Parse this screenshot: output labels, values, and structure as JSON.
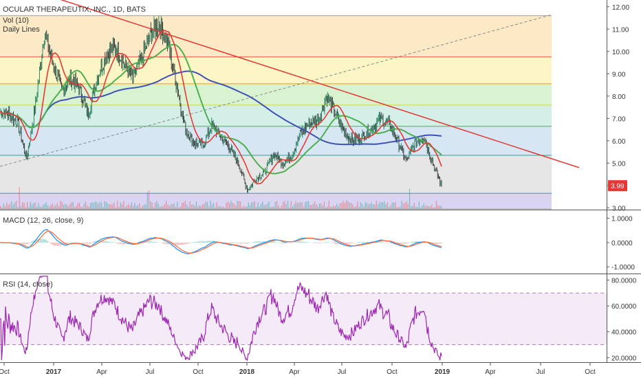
{
  "chart_data": {
    "type": "candlestick",
    "panes": {
      "price": {
        "title": "OCULAR THERAPEUTIX, INC., 1D, BATS",
        "indicator_labels": [
          "Vol (10)",
          "Daily Lines"
        ],
        "y_ticks": [
          "12.00",
          "11.00",
          "10.00",
          "9.00",
          "8.00",
          "7.00",
          "6.00",
          "5.00",
          "4.00",
          "3.00"
        ],
        "ylim": [
          2.95,
          12.3
        ],
        "last_price": "3.99",
        "last_price_color": "#e53935",
        "fib_levels": [
          {
            "value": 11.6,
            "color": "#f4cccc"
          },
          {
            "value": 9.75,
            "color": "#fce9c6"
          },
          {
            "value": 8.55,
            "color": "#fcf6c6"
          },
          {
            "value": 7.6,
            "color": "#d9f2d0"
          },
          {
            "value": 6.65,
            "color": "#d4efe8"
          },
          {
            "value": 5.35,
            "color": "#d6e6f3"
          },
          {
            "value": 3.65,
            "color": "#e6e6e6"
          },
          {
            "value": 2.95,
            "color": "#d9d4f2"
          }
        ],
        "fib_line_colors": [
          "#9e9e9e",
          "#f44336",
          "#ff9800",
          "#cddc39",
          "#4caf50",
          "#26a69a",
          "#2196f3",
          "#9e9e9e",
          "#3f51b5"
        ],
        "trendline": {
          "points": [
            [
              0,
              12.6
            ],
            [
              1260,
              4.8
            ]
          ],
          "color": "#e53935"
        },
        "diagonal": {
          "points": [
            [
              0,
              4.85
            ],
            [
              1195,
              11.65
            ]
          ],
          "color": "#888888"
        },
        "closes_sample": [
          7.3,
          7.2,
          6.8,
          5.2,
          7.5,
          10.8,
          9.5,
          8.2,
          8.8,
          8.3,
          7.2,
          8.8,
          9.8,
          10.2,
          9.5,
          8.8,
          9.6,
          10.7,
          11.3,
          10.4,
          8.5,
          6.5,
          5.9,
          5.8,
          6.7,
          6.2,
          5.7,
          5.0,
          3.8,
          4.3,
          4.6,
          5.4,
          5.0,
          5.3,
          6.3,
          6.8,
          6.9,
          8.0,
          7.2,
          6.4,
          6.0,
          6.2,
          6.5,
          7.0,
          6.8,
          6.0,
          5.1,
          5.9,
          6.2,
          5.0,
          3.99
        ],
        "ma_colors": {
          "blue": "#3f51b5",
          "green": "#4caf50",
          "red": "#e53935"
        }
      },
      "macd": {
        "title": "MACD (12, 26, close, 9)",
        "y_ticks": [
          "1.0000",
          "0.0000",
          "-1.0000"
        ],
        "ylim": [
          -1.25,
          1.3
        ]
      },
      "rsi": {
        "title": "RSI (14, close)",
        "y_ticks": [
          "80.0000",
          "60.0000",
          "40.0000",
          "20.0000"
        ],
        "ylim": [
          17,
          84
        ],
        "bands": [
          30,
          70
        ]
      }
    },
    "x_ticks": [
      "Oct",
      "2017",
      "Apr",
      "Jul",
      "Oct",
      "2018",
      "Apr",
      "Jul",
      "Oct",
      "2019",
      "Apr",
      "Jul",
      "Oct"
    ]
  }
}
